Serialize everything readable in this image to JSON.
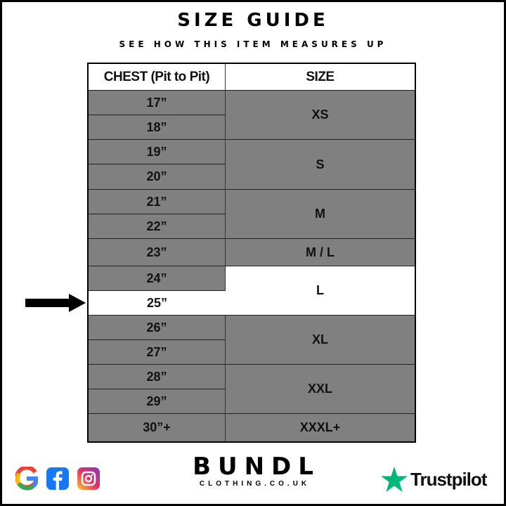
{
  "title": "SIZE GUIDE",
  "subtitle": "SEE HOW THIS ITEM MEASURES UP",
  "table": {
    "headers": [
      "CHEST (Pit to Pit)",
      "SIZE"
    ],
    "chest": [
      "17”",
      "18”",
      "19”",
      "20”",
      "21”",
      "22”",
      "23”",
      "24”",
      "25”",
      "26”",
      "27”",
      "28”",
      "29”",
      "30”+"
    ],
    "sizes": [
      "XS",
      "S",
      "M",
      "M / L",
      "L",
      "XL",
      "XXL",
      "XXXL+"
    ],
    "highlighted_chest": "25”",
    "highlighted_size": "L"
  },
  "colors": {
    "row": "#808080",
    "highlight": "#ffffff",
    "trustpilot": "#00b67a"
  },
  "footer": {
    "social_icons": [
      "google-icon",
      "facebook-icon",
      "instagram-icon"
    ],
    "brand": "BUNDL",
    "brand_sub": "CLOTHING.CO.UK",
    "trustpilot": "Trustpilot"
  }
}
